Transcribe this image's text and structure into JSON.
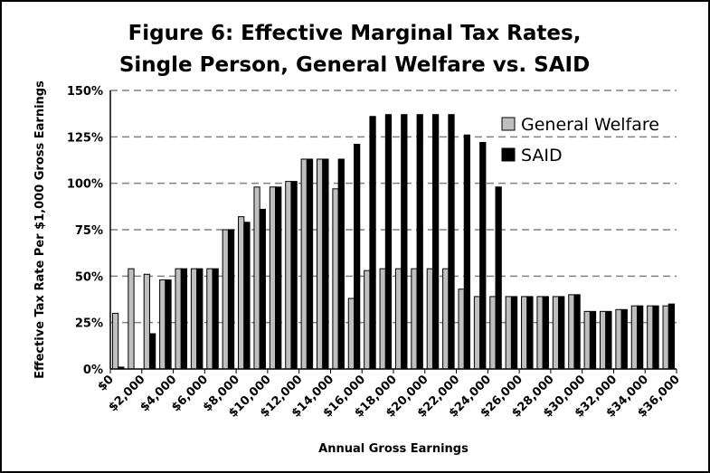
{
  "chart_data": {
    "type": "bar",
    "title": [
      "Figure 6: Effective Marginal Tax Rates,",
      "Single Person, General Welfare vs. SAID"
    ],
    "x_label": "Annual Gross Earnings",
    "y_label": "Effective Tax Rate Per $1,000 Gross Earnings",
    "x": [
      500,
      1500,
      2500,
      3500,
      4500,
      5500,
      6500,
      7500,
      8500,
      9500,
      10500,
      11500,
      12500,
      13500,
      14500,
      15500,
      16500,
      17500,
      18500,
      19500,
      20500,
      21500,
      22500,
      23500,
      24500,
      25500,
      26500,
      27500,
      28500,
      29500,
      30500,
      31500,
      32500,
      33500,
      34500,
      35500
    ],
    "series": [
      {
        "name": "General Welfare",
        "color": "#bfbfbf",
        "values": [
          30,
          54,
          51,
          48,
          54,
          54,
          54,
          75,
          82,
          98,
          98,
          101,
          113,
          113,
          97,
          38,
          53,
          54,
          54,
          54,
          54,
          54,
          43,
          39,
          39,
          39,
          39,
          39,
          39,
          40,
          31,
          31,
          32,
          34,
          34,
          34
        ]
      },
      {
        "name": "SAID",
        "color": "#000000",
        "values": [
          1,
          0,
          19,
          48,
          54,
          54,
          54,
          75,
          79,
          86,
          98,
          101,
          113,
          113,
          113,
          121,
          136,
          137,
          137,
          137,
          137,
          137,
          126,
          122,
          98,
          39,
          39,
          39,
          39,
          40,
          31,
          31,
          32,
          34,
          34,
          35
        ]
      }
    ],
    "xlim": [
      0,
      36000
    ],
    "xticks": [
      {
        "value": 0,
        "label": "$0"
      },
      {
        "value": 2000,
        "label": "$2,000"
      },
      {
        "value": 4000,
        "label": "$4,000"
      },
      {
        "value": 6000,
        "label": "$6,000"
      },
      {
        "value": 8000,
        "label": "$8,000"
      },
      {
        "value": 10000,
        "label": "$10,000"
      },
      {
        "value": 12000,
        "label": "$12,000"
      },
      {
        "value": 14000,
        "label": "$14,000"
      },
      {
        "value": 16000,
        "label": "$16,000"
      },
      {
        "value": 18000,
        "label": "$18,000"
      },
      {
        "value": 20000,
        "label": "$20,000"
      },
      {
        "value": 22000,
        "label": "$22,000"
      },
      {
        "value": 24000,
        "label": "$24,000"
      },
      {
        "value": 26000,
        "label": "$26,000"
      },
      {
        "value": 28000,
        "label": "$28,000"
      },
      {
        "value": 30000,
        "label": "$30,000"
      },
      {
        "value": 32000,
        "label": "$32,000"
      },
      {
        "value": 34000,
        "label": "$34,000"
      },
      {
        "value": 36000,
        "label": "$36,000"
      }
    ],
    "ylim": [
      0,
      150
    ],
    "yticks": [
      {
        "value": 0,
        "label": "0%"
      },
      {
        "value": 25,
        "label": "25%"
      },
      {
        "value": 50,
        "label": "50%"
      },
      {
        "value": 75,
        "label": "75%"
      },
      {
        "value": 100,
        "label": "100%"
      },
      {
        "value": 125,
        "label": "125%"
      },
      {
        "value": 150,
        "label": "150%"
      }
    ],
    "grid": true,
    "legend": "top-right"
  }
}
